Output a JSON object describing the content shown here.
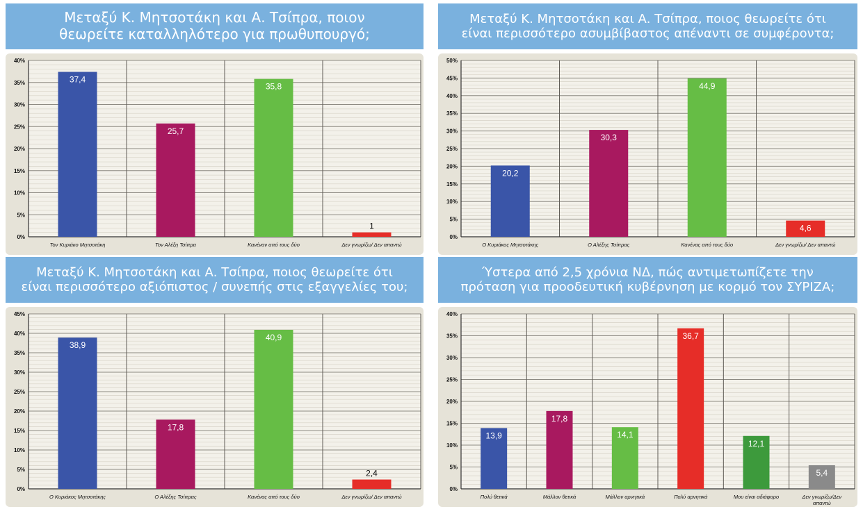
{
  "chart_data": [
    {
      "type": "bar",
      "title": [
        "Μεταξύ Κ. Μητσοτάκη και Α. Τσίπρα, ποιον",
        "θεωρείτε καταλληλότερο για πρωθυπουργό;"
      ],
      "categories": [
        [
          "Τον Κυριάκο Μητσοτάκη"
        ],
        [
          "Τον Αλέξη Τσίπρα"
        ],
        [
          "Κανέναν από τους δύο"
        ],
        [
          "Δεν γνωρίζω/ Δεν απαντώ"
        ]
      ],
      "values": [
        37.4,
        25.7,
        35.8,
        1
      ],
      "value_labels": [
        "37,4",
        "25,7",
        "35,8",
        "1"
      ],
      "bar_colors": [
        "#3a55a8",
        "#a8195f",
        "#66bd45",
        "#e62d28"
      ],
      "yticks": [
        "0%",
        "5%",
        "10%",
        "15%",
        "20%",
        "25%",
        "30%",
        "35%",
        "40%"
      ],
      "ylim": [
        0,
        40
      ],
      "grid": true
    },
    {
      "type": "bar",
      "title": [
        "Μεταξύ Κ. Μητσοτάκη και Α. Τσίπρα, ποιος θεωρείτε ότι",
        "είναι περισσότερο ασυμβίβαστος απέναντι σε συμφέροντα;"
      ],
      "categories": [
        [
          "Ο Κυριάκος Μητσοτάκης"
        ],
        [
          "Ο Αλέξης Τσίπρας"
        ],
        [
          "Κανένας από τους δύο"
        ],
        [
          "Δεν γνωρίζω/ Δεν απαντώ"
        ]
      ],
      "values": [
        20.2,
        30.3,
        44.9,
        4.6
      ],
      "value_labels": [
        "20,2",
        "30,3",
        "44,9",
        "4,6"
      ],
      "bar_colors": [
        "#3a55a8",
        "#a8195f",
        "#66bd45",
        "#e62d28"
      ],
      "yticks": [
        "0%",
        "5%",
        "10%",
        "15%",
        "20%",
        "25%",
        "30%",
        "35%",
        "40%",
        "45%",
        "50%"
      ],
      "ylim": [
        0,
        50
      ],
      "grid": true
    },
    {
      "type": "bar",
      "title": [
        "Μεταξύ Κ. Μητσοτάκη και Α. Τσίπρα, ποιος θεωρείτε ότι",
        "είναι περισσότερο αξιόπιστος / συνεπής στις εξαγγελίες του;"
      ],
      "categories": [
        [
          "Ο Κυριάκος Μητσοτάκης"
        ],
        [
          "Ο Αλέξης Τσίπρας"
        ],
        [
          "Κανένας από τους δύο"
        ],
        [
          "Δεν γνωρίζω/ Δεν απαντώ"
        ]
      ],
      "values": [
        38.9,
        17.8,
        40.9,
        2.4
      ],
      "value_labels": [
        "38,9",
        "17,8",
        "40,9",
        "2,4"
      ],
      "bar_colors": [
        "#3a55a8",
        "#a8195f",
        "#66bd45",
        "#e62d28"
      ],
      "yticks": [
        "0%",
        "5%",
        "10%",
        "15%",
        "20%",
        "25%",
        "30%",
        "35%",
        "40%",
        "45%"
      ],
      "ylim": [
        0,
        45
      ],
      "grid": true
    },
    {
      "type": "bar",
      "title": [
        "Ύστερα από 2,5 χρόνια ΝΔ, πώς αντιμετωπίζετε την",
        "πρόταση για προοδευτική κυβέρνηση με κορμό τον ΣΥΡΙΖΑ;"
      ],
      "categories": [
        [
          "Πολύ θετικά"
        ],
        [
          "Μάλλον θετικά"
        ],
        [
          "Μάλλον αρνητικά"
        ],
        [
          "Πολύ αρνητικά"
        ],
        [
          "Μου είναι αδιάφορο"
        ],
        [
          "Δεν γνωρίζω/Δεν",
          "απαντώ"
        ]
      ],
      "values": [
        13.9,
        17.8,
        14.1,
        36.7,
        12.1,
        5.4
      ],
      "value_labels": [
        "13,9",
        "17,8",
        "14,1",
        "36,7",
        "12,1",
        "5,4"
      ],
      "bar_colors": [
        "#3a55a8",
        "#a8195f",
        "#66bd45",
        "#e62d28",
        "#3d9a3c",
        "#8a8a8a"
      ],
      "yticks": [
        "0%",
        "5%",
        "10%",
        "15%",
        "20%",
        "25%",
        "30%",
        "35%",
        "40%"
      ],
      "ylim": [
        0,
        40
      ],
      "grid": true
    }
  ]
}
